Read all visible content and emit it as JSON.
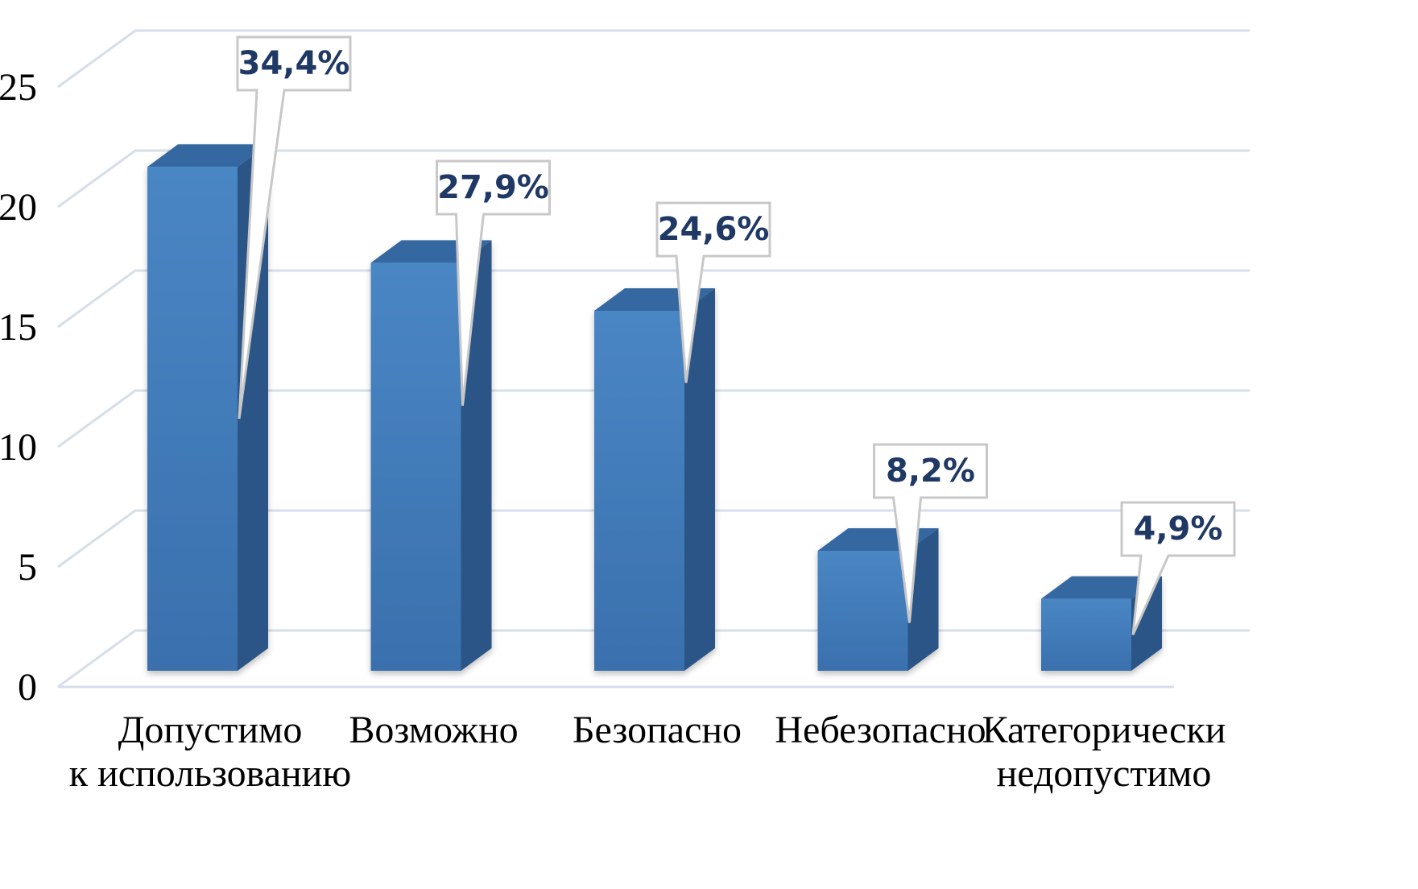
{
  "chart_data": {
    "type": "bar",
    "style": "3d-column",
    "categories": [
      [
        "Допустимо",
        "к использованию"
      ],
      [
        "Возможно"
      ],
      [
        "Безопасно"
      ],
      [
        "Небезопасно"
      ],
      [
        "Категорически",
        "недопустимо"
      ]
    ],
    "values": [
      21,
      17,
      15,
      5,
      3
    ],
    "data_labels": [
      "34,4%",
      "27,9%",
      "24,6%",
      "8,2%",
      "4,9%"
    ],
    "y_ticks": [
      "0",
      "5",
      "10",
      "15",
      "20",
      "25"
    ],
    "ylim": [
      0,
      25
    ],
    "grid": true,
    "legend": "none",
    "colors": {
      "bar_front": "#4a84c2",
      "bar_front_dark": "#3a6ea8",
      "bar_side": "#2c5486",
      "bar_top": "#3467a0",
      "grid": "#d6dee9",
      "label_text": "#1f3864"
    }
  }
}
